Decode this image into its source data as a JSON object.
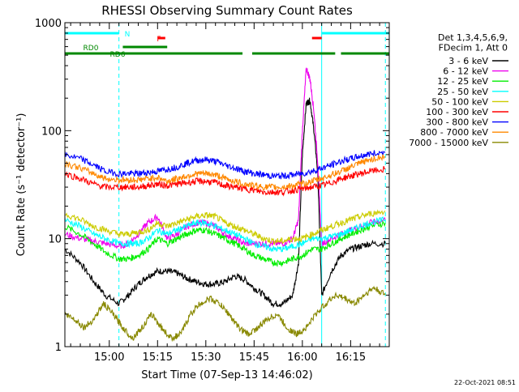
{
  "chart_data": {
    "type": "line",
    "title": "RHESSI Observing Summary Count Rates",
    "xlabel": "Start Time (07-Sep-13 14:46:02)",
    "ylabel": "Count Rate (s⁻¹ detector⁻¹)",
    "footer_timestamp": "22-Oct-2021 08:51",
    "yscale": "log",
    "ylim": [
      1,
      1000
    ],
    "xlim_minutes": [
      14.77,
      16.45
    ],
    "xlim_label": [
      "14:46",
      "16:27"
    ],
    "y_ticks": [
      {
        "value": 1,
        "label": "1"
      },
      {
        "value": 10,
        "label": "10"
      },
      {
        "value": 100,
        "label": "100"
      },
      {
        "value": 1000,
        "label": "1000"
      }
    ],
    "x_ticks": [
      {
        "value": 15.0,
        "label": "15:00"
      },
      {
        "value": 15.25,
        "label": "15:15"
      },
      {
        "value": 15.5,
        "label": "15:30"
      },
      {
        "value": 15.75,
        "label": "15:45"
      },
      {
        "value": 16.0,
        "label": "16:00"
      },
      {
        "value": 16.25,
        "label": "16:15"
      }
    ],
    "legend": {
      "header": [
        "Det 1,3,4,5,6,9,",
        "FDecim 1, Att 0"
      ],
      "placement": "right",
      "entries": [
        {
          "label": "3 - 6 keV",
          "color": "#000000"
        },
        {
          "label": "6 - 12 keV",
          "color": "#ee00ee"
        },
        {
          "label": "12 - 25 keV",
          "color": "#00ee00"
        },
        {
          "label": "25 - 50 keV",
          "color": "#00ffff"
        },
        {
          "label": "50 - 100 keV",
          "color": "#cccc00"
        },
        {
          "label": "100 - 300 keV",
          "color": "#ff0000"
        },
        {
          "label": "300 - 800 keV",
          "color": "#0000ff"
        },
        {
          "label": "800 - 7000 keV",
          "color": "#ff8800"
        },
        {
          "label": "7000 - 15000 keV",
          "color": "#888800"
        }
      ]
    },
    "flags": [
      {
        "label": "N",
        "color": "#00ffff",
        "segments": [
          [
            14.77,
            15.05
          ],
          [
            16.1,
            16.45
          ]
        ]
      },
      {
        "label": "F",
        "color": "#ff0000",
        "segments": [
          [
            15.25,
            15.29
          ],
          [
            16.05,
            16.1
          ]
        ]
      },
      {
        "label": "RD0",
        "color": "#008800",
        "segments": [
          [
            15.07,
            15.3
          ]
        ]
      },
      {
        "label": "RD6",
        "color": "#008800",
        "segments": [
          [
            14.77,
            15.69
          ],
          [
            15.74,
            16.17
          ],
          [
            16.2,
            16.45
          ]
        ]
      }
    ],
    "vertical_markers": [
      {
        "color": "#00ffff",
        "style": "dashed",
        "x": 15.05
      },
      {
        "color": "#00ffff",
        "style": "solid",
        "x": 16.1
      },
      {
        "color": "#00ffff",
        "style": "dashed",
        "x": 16.43
      }
    ],
    "series": [
      {
        "name": "3 - 6 keV",
        "color": "#000000",
        "x": [
          14.77,
          14.85,
          14.92,
          14.98,
          15.05,
          15.1,
          15.15,
          15.2,
          15.25,
          15.3,
          15.35,
          15.4,
          15.45,
          15.5,
          15.55,
          15.6,
          15.65,
          15.7,
          15.75,
          15.8,
          15.85,
          15.9,
          15.95,
          15.98,
          16.0,
          16.02,
          16.04,
          16.06,
          16.08,
          16.1,
          16.15,
          16.2,
          16.25,
          16.3,
          16.35,
          16.43
        ],
        "y": [
          8,
          6,
          4,
          3,
          2.5,
          3,
          3.8,
          4.5,
          5,
          5,
          4.8,
          4.3,
          4,
          3.8,
          3.8,
          4,
          4.5,
          4.2,
          3.5,
          3,
          2.5,
          2.5,
          3,
          6,
          60,
          180,
          190,
          100,
          40,
          3,
          5,
          7,
          8,
          8.5,
          9,
          9
        ]
      },
      {
        "name": "6 - 12 keV",
        "color": "#ee00ee",
        "x": [
          14.77,
          14.85,
          14.92,
          14.98,
          15.05,
          15.1,
          15.15,
          15.2,
          15.25,
          15.3,
          15.35,
          15.4,
          15.45,
          15.5,
          15.55,
          15.6,
          15.65,
          15.7,
          15.75,
          15.8,
          15.85,
          15.9,
          15.95,
          15.98,
          16.0,
          16.02,
          16.04,
          16.06,
          16.08,
          16.1,
          16.15,
          16.2,
          16.25,
          16.3,
          16.35,
          16.43
        ],
        "y": [
          11,
          10,
          9.5,
          9,
          8.5,
          9,
          11,
          14,
          16,
          10,
          11,
          13,
          14,
          14,
          13,
          11,
          10,
          9,
          9,
          9,
          9,
          9,
          10,
          15,
          100,
          380,
          300,
          150,
          50,
          9,
          10,
          11,
          12,
          13,
          14,
          15
        ]
      },
      {
        "name": "12 - 25 keV",
        "color": "#00ee00",
        "x": [
          14.77,
          14.85,
          14.92,
          14.98,
          15.05,
          15.1,
          15.15,
          15.2,
          15.25,
          15.3,
          15.35,
          15.4,
          15.45,
          15.5,
          15.55,
          15.6,
          15.65,
          15.7,
          15.75,
          15.8,
          15.85,
          15.9,
          15.95,
          16.0,
          16.05,
          16.1,
          16.15,
          16.2,
          16.25,
          16.3,
          16.35,
          16.43
        ],
        "y": [
          13,
          11,
          9,
          7.5,
          6.5,
          6.5,
          7,
          8,
          10,
          9,
          10,
          11,
          12,
          12,
          11,
          10,
          9,
          8,
          7,
          6.5,
          6,
          6,
          6.5,
          7,
          8,
          8,
          9,
          10,
          11,
          12,
          13,
          14
        ]
      },
      {
        "name": "25 - 50 keV",
        "color": "#00ffff",
        "x": [
          14.77,
          14.85,
          14.92,
          14.98,
          15.05,
          15.1,
          15.15,
          15.2,
          15.25,
          15.3,
          15.35,
          15.4,
          15.45,
          15.5,
          15.55,
          15.6,
          15.65,
          15.7,
          15.75,
          15.8,
          15.85,
          15.9,
          15.95,
          16.0,
          16.05,
          16.1,
          16.15,
          16.2,
          16.25,
          16.3,
          16.35,
          16.43
        ],
        "y": [
          15,
          13,
          11,
          10,
          9,
          9,
          9,
          10,
          12,
          11,
          12,
          13,
          14,
          14,
          13,
          12,
          11,
          10,
          9,
          8.5,
          8,
          8,
          8.5,
          9,
          10,
          10,
          10.5,
          11,
          12,
          13,
          14,
          15
        ]
      },
      {
        "name": "50 - 100 keV",
        "color": "#cccc00",
        "x": [
          14.77,
          14.85,
          14.92,
          14.98,
          15.05,
          15.1,
          15.15,
          15.2,
          15.25,
          15.3,
          15.35,
          15.4,
          15.45,
          15.5,
          15.55,
          15.6,
          15.65,
          15.7,
          15.75,
          15.8,
          15.85,
          15.9,
          15.95,
          16.0,
          16.05,
          16.1,
          16.15,
          16.2,
          16.25,
          16.3,
          16.35,
          16.43
        ],
        "y": [
          17,
          15,
          13,
          12,
          11,
          11,
          11.5,
          12,
          14,
          13,
          14,
          15,
          16,
          16.5,
          16,
          14,
          13,
          12,
          11,
          10,
          9.5,
          9.5,
          10,
          10,
          11,
          12,
          13,
          14,
          15,
          16,
          17,
          18
        ]
      },
      {
        "name": "100 - 300 keV",
        "color": "#ff0000",
        "x": [
          14.77,
          14.85,
          14.92,
          14.98,
          15.05,
          15.1,
          15.15,
          15.2,
          15.25,
          15.3,
          15.35,
          15.4,
          15.45,
          15.5,
          15.55,
          15.6,
          15.65,
          15.7,
          15.75,
          15.8,
          15.85,
          15.9,
          15.95,
          16.0,
          16.05,
          16.1,
          16.15,
          16.2,
          16.25,
          16.3,
          16.35,
          16.43
        ],
        "y": [
          40,
          36,
          32,
          30,
          30,
          30,
          30,
          31,
          32,
          31,
          32,
          33,
          34,
          34,
          33,
          31,
          30,
          29,
          28,
          27,
          27,
          27,
          28,
          29,
          30,
          31,
          33,
          36,
          38,
          40,
          42,
          44
        ]
      },
      {
        "name": "300 - 800 keV",
        "color": "#0000ff",
        "x": [
          14.77,
          14.85,
          14.92,
          14.98,
          15.05,
          15.1,
          15.15,
          15.2,
          15.25,
          15.3,
          15.35,
          15.4,
          15.45,
          15.5,
          15.55,
          15.6,
          15.65,
          15.7,
          15.75,
          15.8,
          15.85,
          15.9,
          15.95,
          16.0,
          16.05,
          16.1,
          16.15,
          16.2,
          16.25,
          16.3,
          16.35,
          16.43
        ],
        "y": [
          60,
          55,
          48,
          42,
          40,
          40,
          40,
          41,
          42,
          44,
          46,
          50,
          53,
          54,
          52,
          48,
          45,
          42,
          40,
          39,
          38,
          38,
          39,
          40,
          42,
          45,
          48,
          52,
          55,
          58,
          61,
          63
        ]
      },
      {
        "name": "800 - 7000 keV",
        "color": "#ff8800",
        "x": [
          14.77,
          14.85,
          14.92,
          14.98,
          15.05,
          15.1,
          15.15,
          15.2,
          15.25,
          15.3,
          15.35,
          15.4,
          15.45,
          15.5,
          15.55,
          15.6,
          15.65,
          15.7,
          15.75,
          15.8,
          15.85,
          15.9,
          15.95,
          16.0,
          16.05,
          16.1,
          16.15,
          16.2,
          16.25,
          16.3,
          16.35,
          16.43
        ],
        "y": [
          50,
          45,
          40,
          36,
          35,
          35,
          35,
          36,
          37,
          34,
          36,
          38,
          40,
          40,
          39,
          36,
          34,
          32,
          31,
          30,
          30,
          30,
          31,
          32,
          34,
          36,
          39,
          42,
          46,
          50,
          54,
          58
        ]
      },
      {
        "name": "7000 - 15000 keV",
        "color": "#888800",
        "x": [
          14.77,
          14.82,
          14.87,
          14.92,
          14.97,
          15.02,
          15.07,
          15.12,
          15.17,
          15.22,
          15.27,
          15.32,
          15.37,
          15.42,
          15.47,
          15.52,
          15.57,
          15.62,
          15.67,
          15.72,
          15.77,
          15.82,
          15.87,
          15.92,
          15.97,
          16.02,
          16.07,
          16.12,
          16.17,
          16.22,
          16.27,
          16.32,
          16.37,
          16.43
        ],
        "y": [
          2,
          1.8,
          1.5,
          1.8,
          2.5,
          2,
          1.5,
          1.2,
          1.5,
          2,
          1.5,
          1.2,
          1.3,
          2,
          2.5,
          2.8,
          2.5,
          2,
          1.5,
          1.3,
          1.5,
          1.8,
          2,
          1.5,
          1.3,
          1.5,
          2,
          2.5,
          3,
          2.8,
          2.5,
          3,
          3.5,
          3
        ]
      }
    ]
  }
}
